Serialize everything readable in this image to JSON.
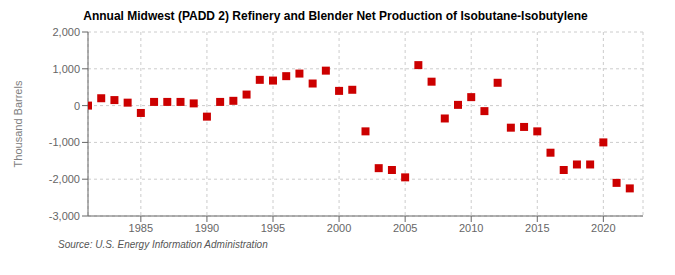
{
  "chart_data": {
    "type": "scatter",
    "title": "Annual Midwest (PADD 2) Refinery and Blender Net Production of Isobutane-Isobutylene",
    "ylabel": "Thousand Barrels",
    "source": "Source: U.S. Energy Information Administration",
    "x": [
      1981,
      1982,
      1983,
      1984,
      1985,
      1986,
      1987,
      1988,
      1989,
      1990,
      1991,
      1992,
      1993,
      1994,
      1995,
      1996,
      1997,
      1998,
      1999,
      2000,
      2001,
      2002,
      2003,
      2004,
      2005,
      2006,
      2007,
      2008,
      2009,
      2010,
      2011,
      2012,
      2013,
      2014,
      2015,
      2016,
      2017,
      2018,
      2019,
      2020,
      2021,
      2022
    ],
    "values": [
      0,
      200,
      150,
      80,
      -200,
      100,
      100,
      100,
      60,
      -300,
      100,
      130,
      300,
      700,
      680,
      800,
      870,
      600,
      950,
      400,
      430,
      -700,
      -1700,
      -1750,
      -1950,
      1100,
      650,
      -350,
      20,
      230,
      -150,
      620,
      -600,
      -580,
      -700,
      -1280,
      -1750,
      -1600,
      -1600,
      -1000,
      -2100,
      -2250
    ],
    "color": "#cc0000",
    "marker": "square",
    "xlim": [
      1981,
      2023
    ],
    "xticks": [
      1985,
      1990,
      1995,
      2000,
      2005,
      2010,
      2015,
      2020
    ],
    "ylim": [
      -3000,
      2000
    ],
    "yticks": [
      {
        "value": -3000,
        "label": "-3,000"
      },
      {
        "value": -2000,
        "label": "-2,000"
      },
      {
        "value": -1000,
        "label": "-1,000"
      },
      0,
      {
        "value": 1000,
        "label": "1,000"
      },
      {
        "value": 2000,
        "label": "2,000"
      }
    ],
    "grid": true
  }
}
